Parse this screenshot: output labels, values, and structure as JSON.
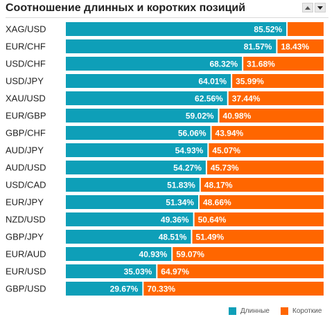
{
  "title": "Соотношение длинных и коротких позиций",
  "icons": {
    "sort_up": "triangle-up",
    "sort_down": "triangle-down"
  },
  "colors": {
    "long": "#0E9FB8",
    "short": "#FF6600",
    "label": "#ffffff"
  },
  "chart_data": {
    "type": "bar",
    "orientation": "horizontal",
    "stacked": true,
    "categories": [
      "XAG/USD",
      "EUR/CHF",
      "USD/CHF",
      "USD/JPY",
      "XAU/USD",
      "EUR/GBP",
      "GBP/CHF",
      "AUD/JPY",
      "AUD/USD",
      "USD/CAD",
      "EUR/JPY",
      "NZD/USD",
      "GBP/JPY",
      "EUR/AUD",
      "EUR/USD",
      "GBP/USD"
    ],
    "series": [
      {
        "name": "Длинные",
        "values": [
          85.52,
          81.57,
          68.32,
          64.01,
          62.56,
          59.02,
          56.06,
          54.93,
          54.27,
          51.83,
          51.34,
          49.36,
          48.51,
          40.93,
          35.03,
          29.67
        ],
        "labels": [
          "85.52%",
          "81.57%",
          "68.32%",
          "64.01%",
          "62.56%",
          "59.02%",
          "56.06%",
          "54.93%",
          "54.27%",
          "51.83%",
          "51.34%",
          "49.36%",
          "48.51%",
          "40.93%",
          "35.03%",
          "29.67%"
        ]
      },
      {
        "name": "Короткие",
        "values": [
          14.48,
          18.43,
          31.68,
          35.99,
          37.44,
          40.98,
          43.94,
          45.07,
          45.73,
          48.17,
          48.66,
          50.64,
          51.49,
          59.07,
          64.97,
          70.33
        ],
        "labels": [
          "",
          "18.43%",
          "31.68%",
          "35.99%",
          "37.44%",
          "40.98%",
          "43.94%",
          "45.07%",
          "45.73%",
          "48.17%",
          "48.66%",
          "50.64%",
          "51.49%",
          "59.07%",
          "64.97%",
          "70.33%"
        ]
      }
    ],
    "xlim": [
      0,
      100
    ],
    "legend": "bottom-right",
    "grid": false
  }
}
